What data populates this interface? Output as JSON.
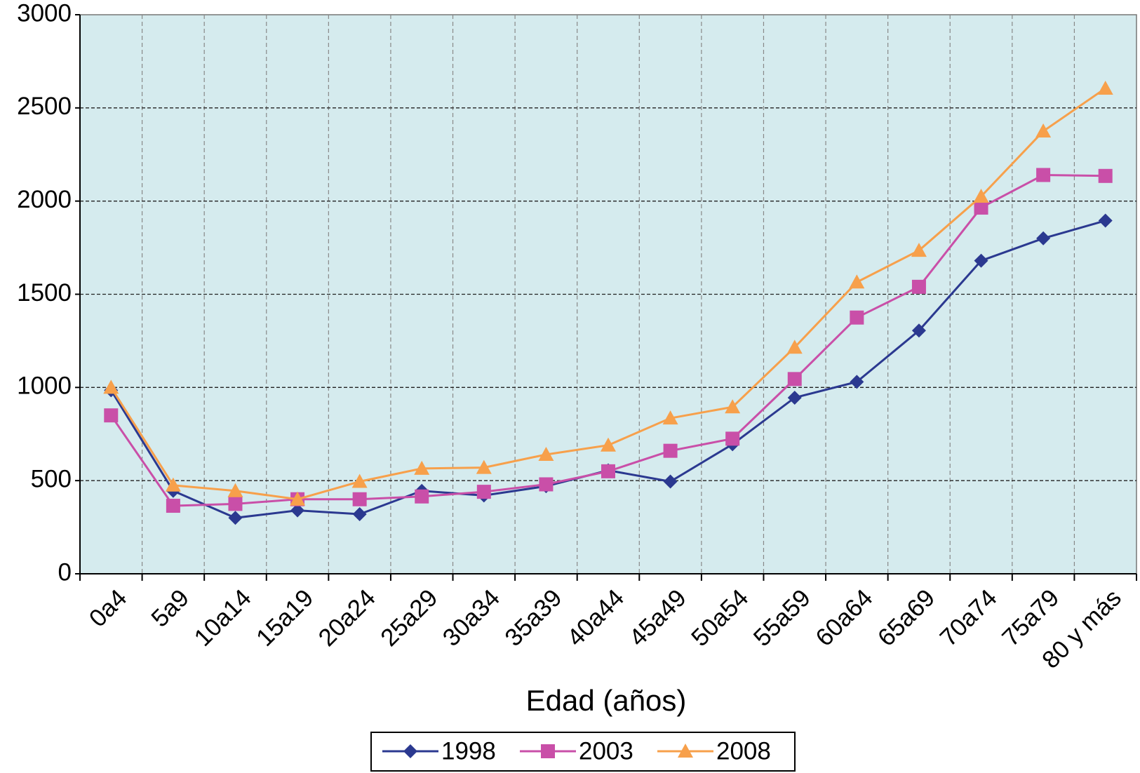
{
  "chart_data": {
    "type": "line",
    "x_label": "Edad (años)",
    "categories": [
      "0a4",
      "5a9",
      "10a14",
      "15a19",
      "20a24",
      "25a29",
      "30a34",
      "35a39",
      "40a44",
      "45a49",
      "50a54",
      "55a59",
      "60a64",
      "65a69",
      "70a74",
      "75a79",
      "80 y más"
    ],
    "series": [
      {
        "name": "1998",
        "color": "#2b3990",
        "marker": "diamond",
        "values": [
          985,
          445,
          300,
          340,
          320,
          445,
          420,
          470,
          555,
          495,
          695,
          945,
          1030,
          1305,
          1680,
          1800,
          1895
        ]
      },
      {
        "name": "2003",
        "color": "#c94fa8",
        "marker": "square",
        "values": [
          850,
          365,
          375,
          400,
          400,
          415,
          440,
          480,
          550,
          660,
          725,
          1045,
          1375,
          1540,
          1965,
          2140,
          2135
        ]
      },
      {
        "name": "2008",
        "color": "#f7a04b",
        "marker": "triangle",
        "values": [
          1000,
          475,
          445,
          400,
          495,
          565,
          570,
          640,
          690,
          835,
          895,
          1215,
          1565,
          1735,
          2025,
          2375,
          2605
        ]
      }
    ],
    "ylim": [
      0,
      3000
    ],
    "yticks": [
      0,
      500,
      1000,
      1500,
      2000,
      2500,
      3000
    ],
    "grid": true,
    "plot_background": "#d5ebee",
    "legend": "bottom"
  }
}
